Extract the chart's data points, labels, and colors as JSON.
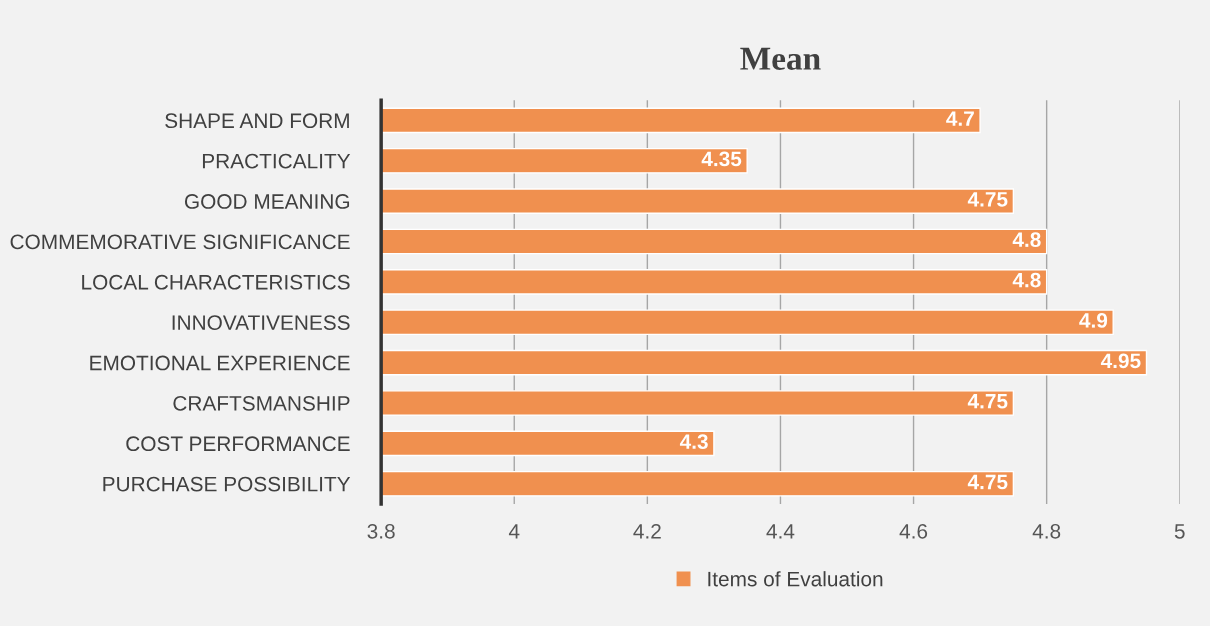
{
  "chart_data": {
    "type": "bar",
    "orientation": "horizontal",
    "title": "Mean",
    "categories": [
      "SHAPE AND FORM",
      "PRACTICALITY",
      "GOOD MEANING",
      "COMMEMORATIVE SIGNIFICANCE",
      "LOCAL CHARACTERISTICS",
      "INNOVATIVENESS",
      "EMOTIONAL EXPERIENCE",
      "CRAFTSMANSHIP",
      "COST PERFORMANCE",
      "PURCHASE POSSIBILITY"
    ],
    "series": [
      {
        "name": "Items of Evaluation",
        "color": "#f0904f",
        "values": [
          4.7,
          4.35,
          4.75,
          4.8,
          4.8,
          4.9,
          4.95,
          4.75,
          4.3,
          4.75
        ]
      }
    ],
    "xlim": [
      3.8,
      5
    ],
    "xticks": [
      3.8,
      {
        "value": 4,
        "label": "4"
      },
      4.2,
      4.4,
      4.6,
      4.8,
      {
        "value": 5,
        "label": "5"
      }
    ],
    "grid": "x",
    "legend": "bottom",
    "data_labels": true
  }
}
